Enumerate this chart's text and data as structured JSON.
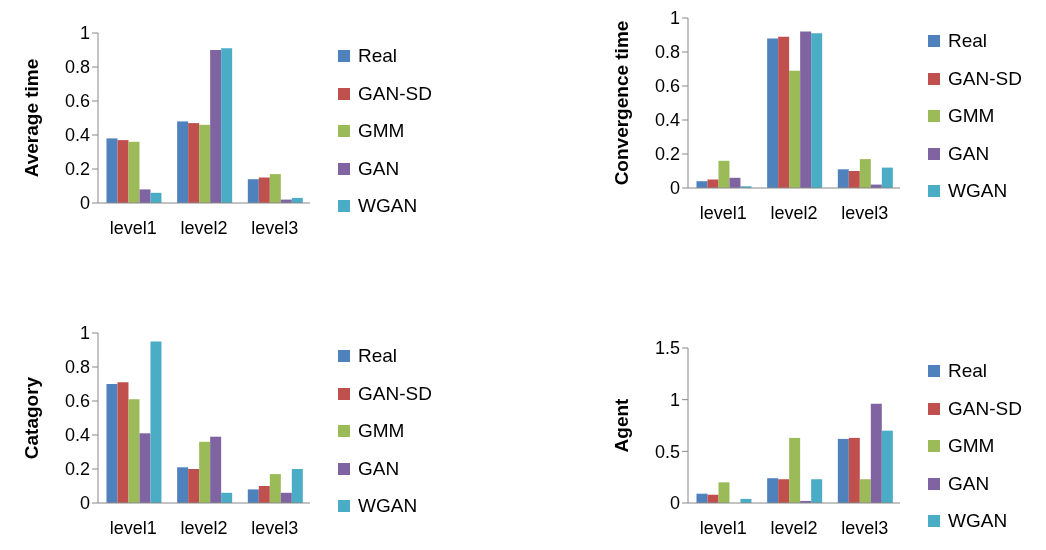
{
  "chart_data": [
    {
      "type": "bar",
      "ylabel": "Average time",
      "categories": [
        "level1",
        "level2",
        "level3"
      ],
      "ylim": [
        0,
        1
      ],
      "yticks": [
        0,
        0.2,
        0.4,
        0.6,
        0.8,
        1
      ],
      "grid": false,
      "legend": "right",
      "series": [
        {
          "name": "Real",
          "color": "#4f81bd",
          "values": [
            0.38,
            0.48,
            0.14
          ]
        },
        {
          "name": "GAN-SD",
          "color": "#c0504d",
          "values": [
            0.37,
            0.47,
            0.15
          ]
        },
        {
          "name": "GMM",
          "color": "#9bbb59",
          "values": [
            0.36,
            0.46,
            0.17
          ]
        },
        {
          "name": "GAN",
          "color": "#8064a2",
          "values": [
            0.08,
            0.9,
            0.02
          ]
        },
        {
          "name": "WGAN",
          "color": "#4bacc6",
          "values": [
            0.06,
            0.91,
            0.03
          ]
        }
      ]
    },
    {
      "type": "bar",
      "ylabel": "Convergence time",
      "categories": [
        "level1",
        "level2",
        "level3"
      ],
      "ylim": [
        0,
        1
      ],
      "yticks": [
        0,
        0.2,
        0.4,
        0.6,
        0.8,
        1
      ],
      "grid": false,
      "legend": "right",
      "series": [
        {
          "name": "Real",
          "color": "#4f81bd",
          "values": [
            0.04,
            0.88,
            0.11
          ]
        },
        {
          "name": "GAN-SD",
          "color": "#c0504d",
          "values": [
            0.05,
            0.89,
            0.1
          ]
        },
        {
          "name": "GMM",
          "color": "#9bbb59",
          "values": [
            0.16,
            0.69,
            0.17
          ]
        },
        {
          "name": "GAN",
          "color": "#8064a2",
          "values": [
            0.06,
            0.92,
            0.02
          ]
        },
        {
          "name": "WGAN",
          "color": "#4bacc6",
          "values": [
            0.01,
            0.91,
            0.12
          ]
        }
      ]
    },
    {
      "type": "bar",
      "ylabel": "Catagory",
      "categories": [
        "level1",
        "level2",
        "level3"
      ],
      "ylim": [
        0,
        1
      ],
      "yticks": [
        0,
        0.2,
        0.4,
        0.6,
        0.8,
        1
      ],
      "grid": false,
      "legend": "right",
      "series": [
        {
          "name": "Real",
          "color": "#4f81bd",
          "values": [
            0.7,
            0.21,
            0.08
          ]
        },
        {
          "name": "GAN-SD",
          "color": "#c0504d",
          "values": [
            0.71,
            0.2,
            0.1
          ]
        },
        {
          "name": "GMM",
          "color": "#9bbb59",
          "values": [
            0.61,
            0.36,
            0.17
          ]
        },
        {
          "name": "GAN",
          "color": "#8064a2",
          "values": [
            0.41,
            0.39,
            0.06
          ]
        },
        {
          "name": "WGAN",
          "color": "#4bacc6",
          "values": [
            0.95,
            0.06,
            0.2
          ]
        }
      ]
    },
    {
      "type": "bar",
      "ylabel": "Agent",
      "categories": [
        "level1",
        "level2",
        "level3"
      ],
      "ylim": [
        0,
        1.5
      ],
      "yticks": [
        0,
        0.5,
        1,
        1.5
      ],
      "grid": false,
      "legend": "right",
      "series": [
        {
          "name": "Real",
          "color": "#4f81bd",
          "values": [
            0.09,
            0.24,
            0.62
          ]
        },
        {
          "name": "GAN-SD",
          "color": "#c0504d",
          "values": [
            0.08,
            0.23,
            0.63
          ]
        },
        {
          "name": "GMM",
          "color": "#9bbb59",
          "values": [
            0.2,
            0.63,
            0.23
          ]
        },
        {
          "name": "GAN",
          "color": "#8064a2",
          "values": [
            0,
            0.02,
            0.96
          ]
        },
        {
          "name": "WGAN",
          "color": "#4bacc6",
          "values": [
            0.04,
            0.23,
            0.7
          ]
        }
      ]
    }
  ]
}
